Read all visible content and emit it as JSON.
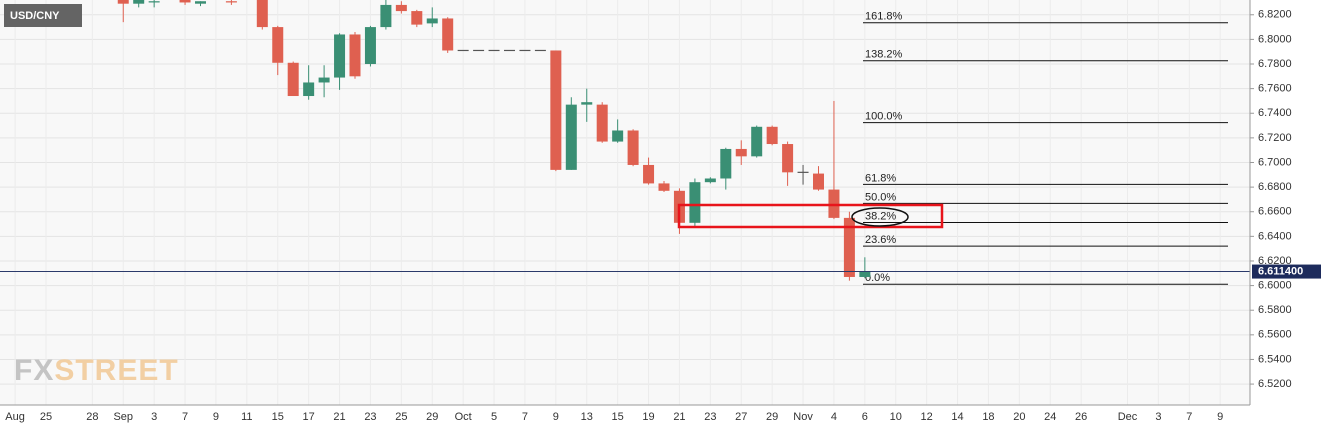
{
  "chart_data": {
    "type": "candlestick",
    "title": "USD/CNY",
    "watermark": [
      "FX",
      "STREET"
    ],
    "up_color": "#3a8f74",
    "down_color": "#df6050",
    "grid": true,
    "categories": [
      "Aug",
      null,
      "25",
      null,
      null,
      "28",
      null,
      "Sep",
      null,
      "3",
      null,
      "7",
      null,
      "9",
      null,
      "11",
      null,
      "15",
      null,
      "17",
      null,
      "21",
      null,
      "23",
      null,
      "25",
      null,
      "29",
      null,
      "Oct",
      null,
      "5",
      null,
      "7",
      null,
      "9",
      null,
      "13",
      null,
      "15",
      null,
      "19",
      null,
      "21",
      null,
      "23",
      null,
      "27",
      null,
      "29",
      null,
      "Nov",
      null,
      "4",
      null,
      "6",
      null,
      "10",
      null,
      "12",
      null,
      "14",
      null,
      "18",
      null,
      "20",
      null,
      "24",
      null,
      "26",
      null,
      null,
      "Dec",
      null,
      "3",
      null,
      "7",
      null,
      "9",
      null
    ],
    "open": [
      null,
      null,
      null,
      null,
      null,
      null,
      null,
      6.832,
      6.829,
      6.83,
      null,
      6.832,
      6.829,
      null,
      6.831,
      null,
      6.832,
      6.81,
      6.781,
      6.754,
      6.765,
      6.769,
      6.804,
      6.78,
      6.81,
      6.828,
      6.823,
      6.813,
      6.817,
      6.791,
      6.791,
      6.791,
      6.791,
      6.791,
      6.791,
      6.791,
      6.694,
      6.747,
      6.747,
      6.717,
      6.726,
      6.698,
      6.683,
      6.677,
      6.651,
      6.684,
      6.687,
      6.711,
      6.705,
      6.729,
      6.715,
      6.692,
      6.691,
      6.678,
      6.655,
      6.607,
      null,
      null,
      null,
      null,
      null,
      null,
      null,
      null,
      null,
      null,
      null,
      null,
      null,
      null,
      null,
      null,
      null,
      null,
      null,
      null,
      null,
      null,
      null,
      null
    ],
    "high": [
      null,
      null,
      null,
      null,
      null,
      null,
      null,
      6.832,
      6.832,
      6.832,
      null,
      6.832,
      6.831,
      null,
      6.832,
      null,
      6.832,
      6.811,
      6.782,
      6.779,
      6.779,
      6.805,
      6.806,
      6.811,
      6.832,
      6.831,
      6.824,
      6.826,
      6.818,
      6.791,
      6.791,
      6.791,
      6.791,
      6.791,
      6.791,
      6.791,
      6.753,
      6.76,
      6.749,
      6.735,
      6.727,
      6.704,
      6.685,
      6.679,
      6.687,
      6.688,
      6.712,
      6.718,
      6.73,
      6.73,
      6.717,
      6.698,
      6.697,
      6.75,
      6.66,
      6.623,
      null,
      null,
      null,
      null,
      null,
      null,
      null,
      null,
      null,
      null,
      null,
      null,
      null,
      null,
      null,
      null,
      null,
      null,
      null,
      null,
      null,
      null,
      null,
      null
    ],
    "low": [
      null,
      null,
      null,
      null,
      null,
      null,
      null,
      6.814,
      6.826,
      6.826,
      null,
      6.828,
      6.827,
      null,
      6.828,
      null,
      6.808,
      6.771,
      6.754,
      6.751,
      6.753,
      6.759,
      6.768,
      6.778,
      6.808,
      6.821,
      6.81,
      6.81,
      6.789,
      6.791,
      6.791,
      6.791,
      6.791,
      6.791,
      6.791,
      6.693,
      6.694,
      6.733,
      6.716,
      6.716,
      6.697,
      6.682,
      6.676,
      6.642,
      6.648,
      6.683,
      6.678,
      6.698,
      6.704,
      6.714,
      6.681,
      6.682,
      6.677,
      6.654,
      6.604,
      6.606,
      null,
      null,
      null,
      null,
      null,
      null,
      null,
      null,
      null,
      null,
      null,
      null,
      null,
      null,
      null,
      null,
      null,
      null,
      null,
      null,
      null,
      null,
      null,
      null
    ],
    "close": [
      null,
      null,
      null,
      null,
      null,
      null,
      null,
      6.829,
      6.832,
      6.831,
      null,
      6.83,
      6.831,
      null,
      6.83,
      null,
      6.81,
      6.781,
      6.754,
      6.765,
      6.769,
      6.804,
      6.77,
      6.81,
      6.828,
      6.823,
      6.812,
      6.817,
      6.791,
      6.791,
      6.791,
      6.791,
      6.791,
      6.791,
      6.791,
      6.694,
      6.747,
      6.749,
      6.717,
      6.726,
      6.698,
      6.683,
      6.677,
      6.651,
      6.684,
      6.687,
      6.711,
      6.705,
      6.729,
      6.715,
      6.692,
      6.692,
      6.678,
      6.655,
      6.607,
      6.6114,
      null,
      null,
      null,
      null,
      null,
      null,
      null,
      null,
      null,
      null,
      null,
      null,
      null,
      null,
      null,
      null,
      null,
      null,
      null,
      null,
      null,
      null,
      null,
      null
    ],
    "ylim": [
      6.503,
      6.832
    ],
    "yticks": [
      {
        "value": 6.52,
        "label": "6.5200"
      },
      {
        "value": 6.54,
        "label": "6.5400"
      },
      {
        "value": 6.56,
        "label": "6.5600"
      },
      {
        "value": 6.58,
        "label": "6.5800"
      },
      {
        "value": 6.6,
        "label": "6.6000"
      },
      {
        "value": 6.62,
        "label": "6.6200"
      },
      {
        "value": 6.64,
        "label": "6.6400"
      },
      {
        "value": 6.66,
        "label": "6.6600"
      },
      {
        "value": 6.68,
        "label": "6.6800"
      },
      {
        "value": 6.7,
        "label": "6.7000"
      },
      {
        "value": 6.72,
        "label": "6.7200"
      },
      {
        "value": 6.74,
        "label": "6.7400"
      },
      {
        "value": 6.76,
        "label": "6.7600"
      },
      {
        "value": 6.78,
        "label": "6.7800"
      },
      {
        "value": 6.8,
        "label": "6.8000"
      },
      {
        "value": 6.82,
        "label": "6.8200"
      }
    ],
    "last_price": {
      "value": 6.6114,
      "label": "6.611400"
    },
    "fib_levels": [
      {
        "ratio": 161.8,
        "label": "161.8%",
        "price": 6.8135
      },
      {
        "ratio": 138.2,
        "label": "138.2%",
        "price": 6.7826
      },
      {
        "ratio": 100.0,
        "label": "100.0%",
        "price": 6.7324
      },
      {
        "ratio": 61.8,
        "label": "61.8%",
        "price": 6.6822
      },
      {
        "ratio": 50.0,
        "label": "50.0%",
        "price": 6.6668
      },
      {
        "ratio": 38.2,
        "label": "38.2%",
        "price": 6.6513
      },
      {
        "ratio": 23.6,
        "label": "23.6%",
        "price": 6.6321
      },
      {
        "ratio": 0.0,
        "label": "0.0%",
        "price": 6.6011
      }
    ]
  }
}
